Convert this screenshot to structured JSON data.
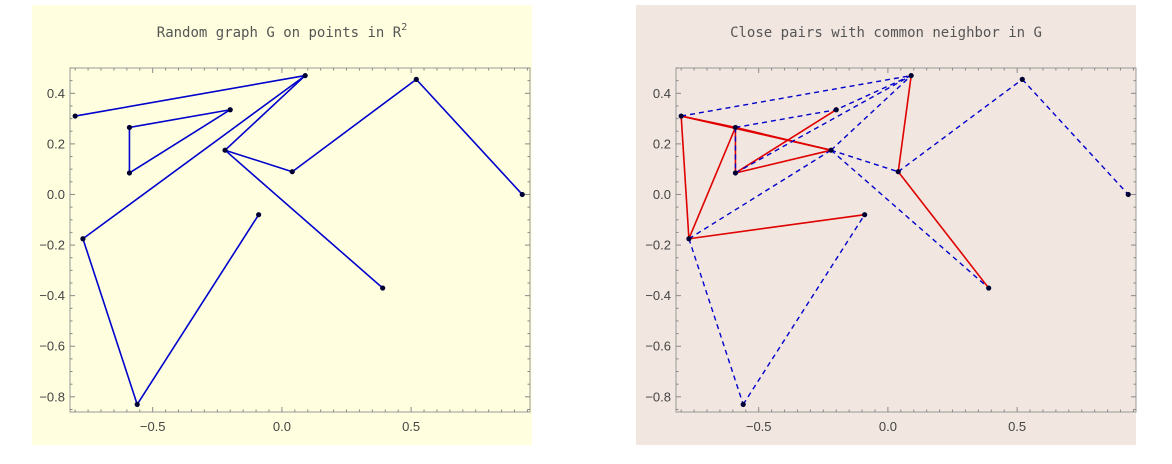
{
  "chart_data": [
    {
      "type": "scatter",
      "title": "Random graph G on points in R",
      "title_superscript": "2",
      "background": "#ffffe0",
      "xlim": [
        -0.82,
        0.96
      ],
      "ylim": [
        -0.86,
        0.5
      ],
      "x_ticks": [
        -0.5,
        0.0,
        0.5
      ],
      "y_ticks": [
        -0.8,
        -0.6,
        -0.4,
        -0.2,
        0.0,
        0.2,
        0.4
      ],
      "points": [
        {
          "x": -0.8,
          "y": 0.31
        },
        {
          "x": 0.09,
          "y": 0.47
        },
        {
          "x": 0.52,
          "y": 0.455
        },
        {
          "x": 0.93,
          "y": 0.0
        },
        {
          "x": -0.59,
          "y": 0.265
        },
        {
          "x": -0.2,
          "y": 0.335
        },
        {
          "x": -0.59,
          "y": 0.085
        },
        {
          "x": -0.22,
          "y": 0.175
        },
        {
          "x": 0.04,
          "y": 0.09
        },
        {
          "x": -0.77,
          "y": -0.175
        },
        {
          "x": -0.09,
          "y": -0.08
        },
        {
          "x": -0.56,
          "y": -0.83
        },
        {
          "x": 0.39,
          "y": -0.37
        }
      ],
      "series": [
        {
          "style": "solid",
          "color": "#0000cc",
          "edges": [
            [
              0,
              1
            ],
            [
              1,
              7
            ],
            [
              1,
              9
            ],
            [
              7,
              8
            ],
            [
              8,
              2
            ],
            [
              2,
              3
            ],
            [
              4,
              5
            ],
            [
              4,
              6
            ],
            [
              6,
              5
            ],
            [
              7,
              12
            ],
            [
              11,
              10
            ],
            [
              11,
              9
            ]
          ]
        }
      ]
    },
    {
      "type": "scatter",
      "title": "Close pairs with common neighbor in G",
      "background": "#f1e6e0",
      "xlim": [
        -0.82,
        0.96
      ],
      "ylim": [
        -0.86,
        0.5
      ],
      "x_ticks": [
        -0.5,
        0.0,
        0.5
      ],
      "y_ticks": [
        -0.8,
        -0.6,
        -0.4,
        -0.2,
        0.0,
        0.2,
        0.4
      ],
      "points": [
        {
          "x": -0.8,
          "y": 0.31
        },
        {
          "x": 0.09,
          "y": 0.47
        },
        {
          "x": 0.52,
          "y": 0.455
        },
        {
          "x": 0.93,
          "y": 0.0
        },
        {
          "x": -0.59,
          "y": 0.265
        },
        {
          "x": -0.2,
          "y": 0.335
        },
        {
          "x": -0.59,
          "y": 0.085
        },
        {
          "x": -0.22,
          "y": 0.175
        },
        {
          "x": 0.04,
          "y": 0.09
        },
        {
          "x": -0.77,
          "y": -0.175
        },
        {
          "x": -0.09,
          "y": -0.08
        },
        {
          "x": -0.56,
          "y": -0.83
        },
        {
          "x": 0.39,
          "y": -0.37
        }
      ],
      "series": [
        {
          "style": "solid",
          "color": "#e00000",
          "edges": [
            [
              0,
              4
            ],
            [
              0,
              7
            ],
            [
              0,
              9
            ],
            [
              4,
              7
            ],
            [
              6,
              7
            ],
            [
              6,
              4
            ],
            [
              6,
              5
            ],
            [
              4,
              9
            ],
            [
              9,
              10
            ],
            [
              1,
              8
            ],
            [
              8,
              12
            ]
          ]
        },
        {
          "style": "dashed",
          "color": "#0000cc",
          "edges": [
            [
              0,
              1
            ],
            [
              4,
              5
            ],
            [
              4,
              6
            ],
            [
              6,
              1
            ],
            [
              7,
              1
            ],
            [
              9,
              7
            ],
            [
              7,
              8
            ],
            [
              8,
              2
            ],
            [
              2,
              3
            ],
            [
              1,
              5
            ],
            [
              7,
              12
            ],
            [
              9,
              11
            ],
            [
              11,
              10
            ]
          ]
        }
      ]
    }
  ]
}
